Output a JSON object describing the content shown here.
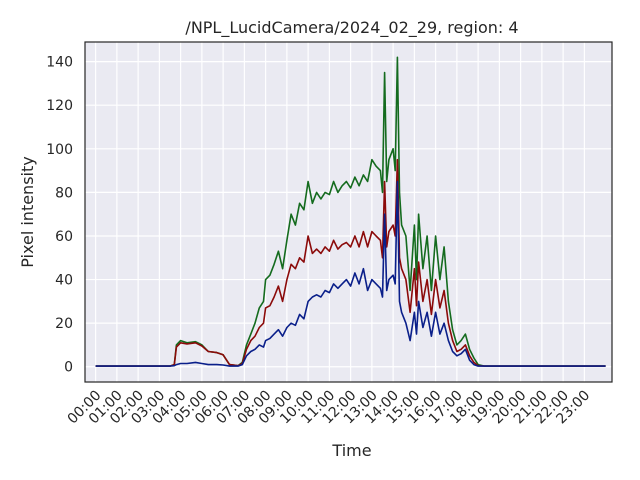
{
  "chart_data": {
    "type": "line",
    "title": "/NPL_LucidCamera/2024_02_29, region: 4",
    "xlabel": "Time",
    "ylabel": "Pixel intensity",
    "xlim": [
      -0.5,
      24.3
    ],
    "ylim": [
      -7,
      149
    ],
    "grid": true,
    "x_ticks": [
      0,
      1,
      2,
      3,
      4,
      5,
      6,
      7,
      8,
      9,
      10,
      11,
      12,
      13,
      14,
      15,
      16,
      17,
      18,
      19,
      20,
      21,
      22,
      23
    ],
    "x_tick_labels": [
      "00:00",
      "01:00",
      "02:00",
      "03:00",
      "04:00",
      "05:00",
      "06:00",
      "07:00",
      "08:00",
      "09:00",
      "10:00",
      "11:00",
      "12:00",
      "13:00",
      "14:00",
      "15:00",
      "16:00",
      "17:00",
      "18:00",
      "19:00",
      "20:00",
      "21:00",
      "22:00",
      "23:00"
    ],
    "y_ticks": [
      0,
      20,
      40,
      60,
      80,
      100,
      120,
      140
    ],
    "colors": {
      "red": "#8b0a0a",
      "green": "#146b1e",
      "blue": "#0a1f8a",
      "background": "#eaeaf2",
      "grid": "#ffffff"
    },
    "series": [
      {
        "color": "#146b1e",
        "points": [
          [
            0,
            0.3
          ],
          [
            3.5,
            0.3
          ],
          [
            3.7,
            1
          ],
          [
            3.8,
            10
          ],
          [
            4.0,
            12
          ],
          [
            4.3,
            11
          ],
          [
            4.7,
            11.5
          ],
          [
            5.0,
            10
          ],
          [
            5.3,
            7
          ],
          [
            5.7,
            6.5
          ],
          [
            6.0,
            5.5
          ],
          [
            6.3,
            1
          ],
          [
            6.7,
            0.5
          ],
          [
            6.9,
            2
          ],
          [
            7.1,
            10
          ],
          [
            7.3,
            15
          ],
          [
            7.5,
            20
          ],
          [
            7.7,
            27
          ],
          [
            7.9,
            30
          ],
          [
            8.0,
            40
          ],
          [
            8.2,
            42
          ],
          [
            8.4,
            47
          ],
          [
            8.6,
            53
          ],
          [
            8.8,
            45
          ],
          [
            9.0,
            58
          ],
          [
            9.2,
            70
          ],
          [
            9.4,
            65
          ],
          [
            9.6,
            75
          ],
          [
            9.8,
            72
          ],
          [
            10.0,
            85
          ],
          [
            10.2,
            75
          ],
          [
            10.4,
            80
          ],
          [
            10.6,
            77
          ],
          [
            10.8,
            80
          ],
          [
            11.0,
            79
          ],
          [
            11.2,
            85
          ],
          [
            11.4,
            80
          ],
          [
            11.6,
            83
          ],
          [
            11.8,
            85
          ],
          [
            12.0,
            82
          ],
          [
            12.2,
            87
          ],
          [
            12.4,
            83
          ],
          [
            12.6,
            88
          ],
          [
            12.8,
            85
          ],
          [
            13.0,
            95
          ],
          [
            13.2,
            92
          ],
          [
            13.4,
            90
          ],
          [
            13.5,
            80
          ],
          [
            13.6,
            135
          ],
          [
            13.7,
            85
          ],
          [
            13.8,
            95
          ],
          [
            14.0,
            100
          ],
          [
            14.1,
            90
          ],
          [
            14.2,
            142
          ],
          [
            14.3,
            80
          ],
          [
            14.4,
            65
          ],
          [
            14.6,
            60
          ],
          [
            14.8,
            35
          ],
          [
            15.0,
            65
          ],
          [
            15.1,
            40
          ],
          [
            15.2,
            70
          ],
          [
            15.4,
            45
          ],
          [
            15.6,
            60
          ],
          [
            15.8,
            35
          ],
          [
            16.0,
            60
          ],
          [
            16.2,
            40
          ],
          [
            16.4,
            55
          ],
          [
            16.6,
            30
          ],
          [
            16.8,
            17
          ],
          [
            17.0,
            10
          ],
          [
            17.2,
            12
          ],
          [
            17.4,
            15
          ],
          [
            17.6,
            8
          ],
          [
            17.8,
            4
          ],
          [
            18.0,
            1
          ],
          [
            18.3,
            0.3
          ],
          [
            24.0,
            0.3
          ]
        ]
      },
      {
        "color": "#8b0a0a",
        "points": [
          [
            0,
            0.3
          ],
          [
            3.5,
            0.3
          ],
          [
            3.7,
            1
          ],
          [
            3.8,
            9
          ],
          [
            4.0,
            11
          ],
          [
            4.3,
            10.5
          ],
          [
            4.7,
            11
          ],
          [
            5.0,
            9.5
          ],
          [
            5.3,
            7
          ],
          [
            5.7,
            6.5
          ],
          [
            6.0,
            5.5
          ],
          [
            6.3,
            1
          ],
          [
            6.7,
            0.5
          ],
          [
            6.9,
            1.5
          ],
          [
            7.1,
            8
          ],
          [
            7.3,
            12
          ],
          [
            7.5,
            14
          ],
          [
            7.7,
            18
          ],
          [
            7.9,
            20
          ],
          [
            8.0,
            27
          ],
          [
            8.2,
            28
          ],
          [
            8.4,
            32
          ],
          [
            8.6,
            37
          ],
          [
            8.8,
            30
          ],
          [
            9.0,
            40
          ],
          [
            9.2,
            47
          ],
          [
            9.4,
            45
          ],
          [
            9.6,
            50
          ],
          [
            9.8,
            48
          ],
          [
            10.0,
            60
          ],
          [
            10.2,
            52
          ],
          [
            10.4,
            54
          ],
          [
            10.6,
            52
          ],
          [
            10.8,
            55
          ],
          [
            11.0,
            53
          ],
          [
            11.2,
            58
          ],
          [
            11.4,
            54
          ],
          [
            11.6,
            56
          ],
          [
            11.8,
            57
          ],
          [
            12.0,
            55
          ],
          [
            12.2,
            60
          ],
          [
            12.4,
            55
          ],
          [
            12.6,
            62
          ],
          [
            12.8,
            55
          ],
          [
            13.0,
            62
          ],
          [
            13.2,
            60
          ],
          [
            13.4,
            58
          ],
          [
            13.5,
            50
          ],
          [
            13.6,
            85
          ],
          [
            13.7,
            55
          ],
          [
            13.8,
            62
          ],
          [
            14.0,
            65
          ],
          [
            14.1,
            60
          ],
          [
            14.2,
            95
          ],
          [
            14.3,
            50
          ],
          [
            14.4,
            45
          ],
          [
            14.6,
            40
          ],
          [
            14.8,
            25
          ],
          [
            15.0,
            45
          ],
          [
            15.1,
            28
          ],
          [
            15.2,
            48
          ],
          [
            15.4,
            30
          ],
          [
            15.6,
            40
          ],
          [
            15.8,
            24
          ],
          [
            16.0,
            40
          ],
          [
            16.2,
            27
          ],
          [
            16.4,
            35
          ],
          [
            16.6,
            20
          ],
          [
            16.8,
            12
          ],
          [
            17.0,
            7
          ],
          [
            17.2,
            8
          ],
          [
            17.4,
            10
          ],
          [
            17.6,
            5
          ],
          [
            17.8,
            2
          ],
          [
            18.0,
            0.5
          ],
          [
            18.3,
            0.3
          ],
          [
            24.0,
            0.3
          ]
        ]
      },
      {
        "color": "#0a1f8a",
        "points": [
          [
            0,
            0.3
          ],
          [
            3.5,
            0.3
          ],
          [
            3.7,
            0.5
          ],
          [
            3.8,
            1
          ],
          [
            4.0,
            1.5
          ],
          [
            4.3,
            1.5
          ],
          [
            4.7,
            2
          ],
          [
            5.0,
            1.5
          ],
          [
            5.3,
            1
          ],
          [
            5.7,
            1
          ],
          [
            6.0,
            0.8
          ],
          [
            6.3,
            0.3
          ],
          [
            6.7,
            0.3
          ],
          [
            6.9,
            1
          ],
          [
            7.1,
            5
          ],
          [
            7.3,
            7
          ],
          [
            7.5,
            8
          ],
          [
            7.7,
            10
          ],
          [
            7.9,
            9
          ],
          [
            8.0,
            12
          ],
          [
            8.2,
            13
          ],
          [
            8.4,
            15
          ],
          [
            8.6,
            17
          ],
          [
            8.8,
            14
          ],
          [
            9.0,
            18
          ],
          [
            9.2,
            20
          ],
          [
            9.4,
            19
          ],
          [
            9.6,
            24
          ],
          [
            9.8,
            22
          ],
          [
            10.0,
            30
          ],
          [
            10.2,
            32
          ],
          [
            10.4,
            33
          ],
          [
            10.6,
            32
          ],
          [
            10.8,
            35
          ],
          [
            11.0,
            34
          ],
          [
            11.2,
            38
          ],
          [
            11.4,
            36
          ],
          [
            11.6,
            38
          ],
          [
            11.8,
            40
          ],
          [
            12.0,
            37
          ],
          [
            12.2,
            43
          ],
          [
            12.4,
            38
          ],
          [
            12.6,
            45
          ],
          [
            12.8,
            35
          ],
          [
            13.0,
            40
          ],
          [
            13.2,
            38
          ],
          [
            13.4,
            36
          ],
          [
            13.5,
            32
          ],
          [
            13.6,
            70
          ],
          [
            13.7,
            35
          ],
          [
            13.8,
            40
          ],
          [
            14.0,
            42
          ],
          [
            14.1,
            38
          ],
          [
            14.2,
            85
          ],
          [
            14.3,
            30
          ],
          [
            14.4,
            25
          ],
          [
            14.6,
            20
          ],
          [
            14.8,
            12
          ],
          [
            15.0,
            25
          ],
          [
            15.1,
            15
          ],
          [
            15.2,
            30
          ],
          [
            15.4,
            18
          ],
          [
            15.6,
            25
          ],
          [
            15.8,
            14
          ],
          [
            16.0,
            25
          ],
          [
            16.2,
            15
          ],
          [
            16.4,
            20
          ],
          [
            16.6,
            12
          ],
          [
            16.8,
            7
          ],
          [
            17.0,
            5
          ],
          [
            17.2,
            6
          ],
          [
            17.4,
            8
          ],
          [
            17.6,
            3
          ],
          [
            17.8,
            1
          ],
          [
            18.0,
            0.3
          ],
          [
            24.0,
            0.3
          ]
        ]
      }
    ]
  }
}
